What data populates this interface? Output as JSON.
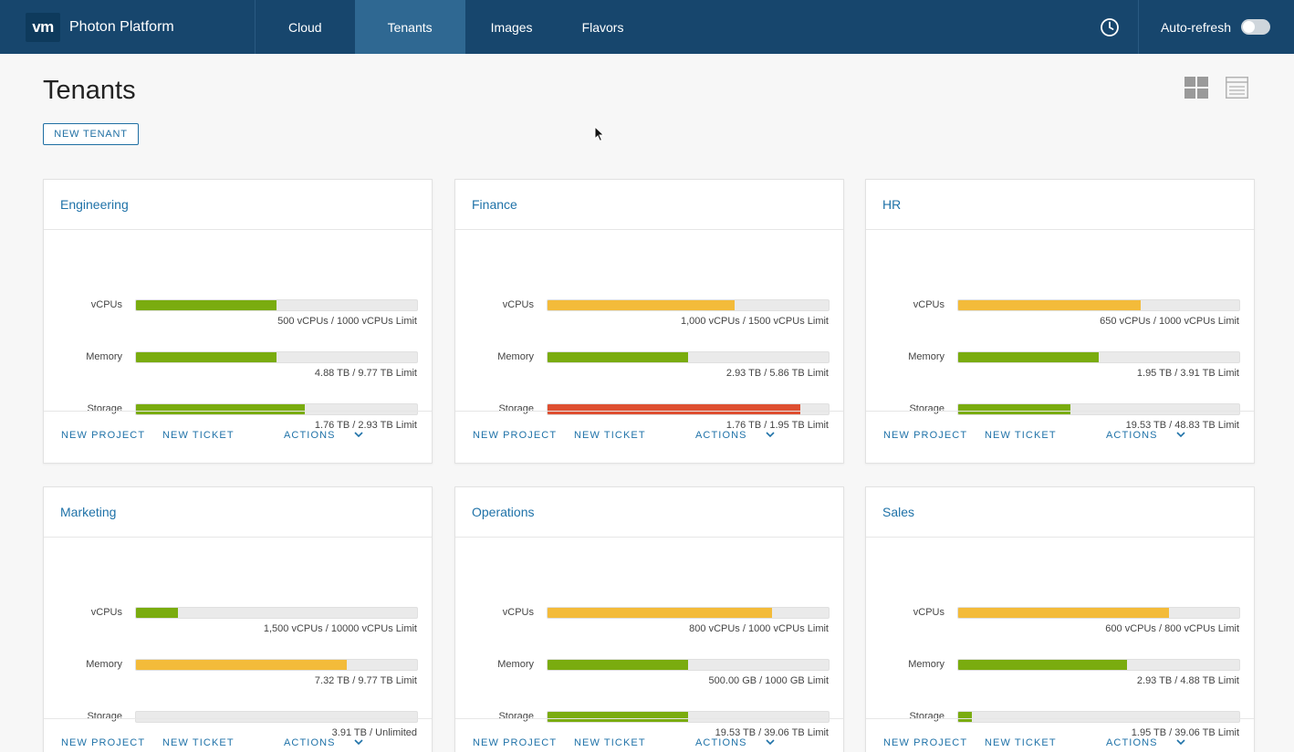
{
  "header": {
    "logo_text": "vm",
    "title": "Photon Platform",
    "nav": [
      {
        "label": "Cloud",
        "active": false
      },
      {
        "label": "Tenants",
        "active": true
      },
      {
        "label": "Images",
        "active": false
      },
      {
        "label": "Flavors",
        "active": false
      }
    ],
    "history_icon": "clock-icon",
    "auto_refresh_label": "Auto-refresh",
    "auto_refresh_on": false
  },
  "page": {
    "title": "Tenants",
    "new_tenant_label": "NEW TENANT",
    "view_icons": [
      "grid-view-icon",
      "list-view-icon"
    ]
  },
  "colors": {
    "green": "#7aac0f",
    "yellow": "#f3bb3a",
    "red": "#de4f31",
    "link": "#1f72a8",
    "topbar": "#17466d"
  },
  "card_labels": {
    "new_project": "NEW PROJECT",
    "new_ticket": "NEW TICKET",
    "actions": "ACTIONS"
  },
  "tenants": [
    {
      "name": "Engineering",
      "metrics": [
        {
          "label": "vCPUs",
          "text": "500 vCPUs / 1000 vCPUs Limit",
          "fraction": 0.5,
          "color": "#7aac0f"
        },
        {
          "label": "Memory",
          "text": "4.88 TB / 9.77 TB Limit",
          "fraction": 0.5,
          "color": "#7aac0f"
        },
        {
          "label": "Storage",
          "text": "1.76 TB / 2.93 TB Limit",
          "fraction": 0.6,
          "color": "#7aac0f"
        }
      ]
    },
    {
      "name": "Finance",
      "metrics": [
        {
          "label": "vCPUs",
          "text": "1,000 vCPUs / 1500 vCPUs Limit",
          "fraction": 0.667,
          "color": "#f3bb3a"
        },
        {
          "label": "Memory",
          "text": "2.93 TB / 5.86 TB Limit",
          "fraction": 0.5,
          "color": "#7aac0f"
        },
        {
          "label": "Storage",
          "text": "1.76 TB / 1.95 TB Limit",
          "fraction": 0.9,
          "color": "#de4f31"
        }
      ]
    },
    {
      "name": "HR",
      "metrics": [
        {
          "label": "vCPUs",
          "text": "650 vCPUs / 1000 vCPUs Limit",
          "fraction": 0.65,
          "color": "#f3bb3a"
        },
        {
          "label": "Memory",
          "text": "1.95 TB / 3.91 TB Limit",
          "fraction": 0.5,
          "color": "#7aac0f"
        },
        {
          "label": "Storage",
          "text": "19.53 TB / 48.83 TB Limit",
          "fraction": 0.4,
          "color": "#7aac0f"
        }
      ]
    },
    {
      "name": "Marketing",
      "metrics": [
        {
          "label": "vCPUs",
          "text": "1,500 vCPUs / 10000 vCPUs Limit",
          "fraction": 0.15,
          "color": "#7aac0f"
        },
        {
          "label": "Memory",
          "text": "7.32 TB / 9.77 TB Limit",
          "fraction": 0.75,
          "color": "#f3bb3a"
        },
        {
          "label": "Storage",
          "text": "3.91 TB / Unlimited",
          "fraction": 0,
          "color": "#7aac0f"
        }
      ]
    },
    {
      "name": "Operations",
      "metrics": [
        {
          "label": "vCPUs",
          "text": "800 vCPUs / 1000 vCPUs Limit",
          "fraction": 0.8,
          "color": "#f3bb3a"
        },
        {
          "label": "Memory",
          "text": "500.00 GB / 1000 GB Limit",
          "fraction": 0.5,
          "color": "#7aac0f"
        },
        {
          "label": "Storage",
          "text": "19.53 TB / 39.06 TB Limit",
          "fraction": 0.5,
          "color": "#7aac0f"
        }
      ]
    },
    {
      "name": "Sales",
      "metrics": [
        {
          "label": "vCPUs",
          "text": "600 vCPUs / 800 vCPUs Limit",
          "fraction": 0.75,
          "color": "#f3bb3a"
        },
        {
          "label": "Memory",
          "text": "2.93 TB / 4.88 TB Limit",
          "fraction": 0.6,
          "color": "#7aac0f"
        },
        {
          "label": "Storage",
          "text": "1.95 TB / 39.06 TB Limit",
          "fraction": 0.05,
          "color": "#7aac0f"
        }
      ]
    }
  ]
}
